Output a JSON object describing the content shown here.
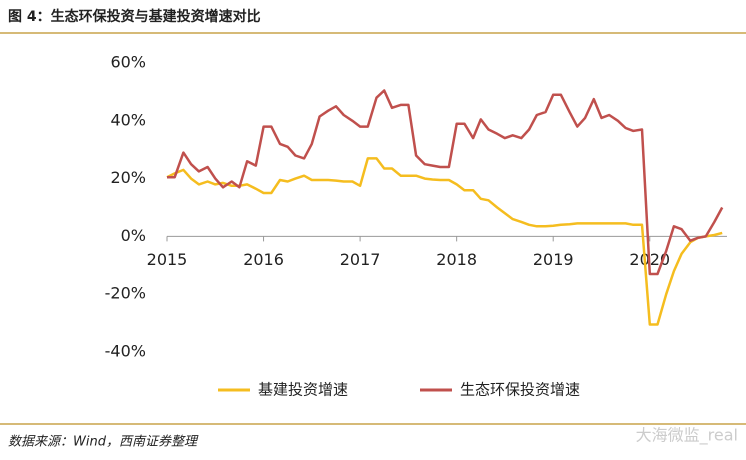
{
  "chart_data": {
    "type": "line",
    "title": "图 4：生态环保投资与基建投资增速对比",
    "source": "数据来源：Wind，西南证券整理",
    "watermark": "大海微监_real",
    "x": [
      2015,
      2015.08,
      2015.17,
      2015.25,
      2015.33,
      2015.42,
      2015.5,
      2015.58,
      2015.67,
      2015.75,
      2015.83,
      2015.92,
      2016,
      2016.08,
      2016.17,
      2016.25,
      2016.33,
      2016.42,
      2016.5,
      2016.58,
      2016.67,
      2016.75,
      2016.83,
      2016.92,
      2017,
      2017.08,
      2017.17,
      2017.25,
      2017.33,
      2017.42,
      2017.5,
      2017.58,
      2017.67,
      2017.75,
      2017.83,
      2017.92,
      2018,
      2018.08,
      2018.17,
      2018.25,
      2018.33,
      2018.42,
      2018.5,
      2018.58,
      2018.67,
      2018.75,
      2018.83,
      2018.92,
      2019,
      2019.08,
      2019.17,
      2019.25,
      2019.33,
      2019.42,
      2019.5,
      2019.58,
      2019.67,
      2019.75,
      2019.83,
      2019.92,
      2020,
      2020.08,
      2020.17,
      2020.25,
      2020.33,
      2020.42,
      2020.5,
      2020.58,
      2020.67,
      2020.75
    ],
    "series": [
      {
        "name": "基建投资增速",
        "color": "#f5bd1f",
        "values": [
          20.5,
          21.8,
          23,
          20,
          18,
          19,
          18,
          18.5,
          17.5,
          17.5,
          18,
          16.5,
          15,
          15,
          19.5,
          19,
          20,
          21,
          19.5,
          19.5,
          19.5,
          19.3,
          19,
          19,
          17.5,
          27,
          27,
          23.5,
          23.5,
          21,
          21,
          21,
          20,
          19.7,
          19.5,
          19.5,
          18,
          16,
          16,
          13,
          12.5,
          10,
          8,
          6,
          5,
          4,
          3.5,
          3.5,
          3.7,
          4,
          4.2,
          4.5,
          4.5,
          4.5,
          4.5,
          4.5,
          4.5,
          4.5,
          4,
          4,
          -30.5,
          -30.5,
          -20,
          -12,
          -6,
          -2,
          -0.5,
          0,
          0.5,
          1.2
        ]
      },
      {
        "name": "生态环保投资增速",
        "color": "#c0504d",
        "values": [
          20.5,
          20.5,
          29,
          25,
          22.5,
          24,
          20,
          17,
          19,
          17,
          26,
          24.5,
          38,
          38,
          32,
          31,
          28,
          27,
          32,
          41.5,
          43.5,
          45,
          42,
          40,
          38,
          38,
          48,
          50.5,
          44.5,
          45.5,
          45.5,
          28,
          25,
          24.5,
          24,
          24,
          39,
          39,
          34,
          40.5,
          37,
          35.5,
          34,
          35,
          34,
          37,
          42,
          43,
          49,
          49,
          43,
          38,
          41,
          47.5,
          41,
          42,
          40,
          37.5,
          36.5,
          37,
          -13,
          -13,
          -5,
          3.5,
          2.5,
          -1.5,
          -0.5,
          0,
          5,
          10
        ]
      }
    ],
    "xlim": [
      2015,
      2020.8
    ],
    "xticks": [
      2015,
      2016,
      2017,
      2018,
      2019,
      2020
    ],
    "ylim": [
      -40,
      60
    ],
    "yticks": [
      {
        "value": -40,
        "label": "-40%"
      },
      {
        "value": -20,
        "label": "-20%"
      },
      {
        "value": 0,
        "label": "0%"
      },
      {
        "value": 20,
        "label": "20%"
      },
      {
        "value": 40,
        "label": "40%"
      },
      {
        "value": 60,
        "label": "60%"
      }
    ],
    "grid": false,
    "legend": "bottom"
  }
}
